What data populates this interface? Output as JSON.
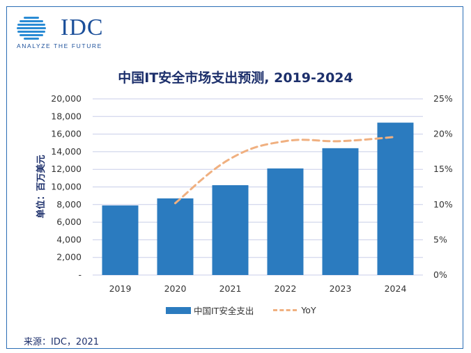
{
  "header": {
    "logo_name": "IDC",
    "tagline": "ANALYZE THE FUTURE"
  },
  "chart_data": {
    "type": "bar",
    "title": "中国IT安全市场支出预测, 2019-2024",
    "ylabel": "单位：百万美元",
    "categories": [
      "2019",
      "2020",
      "2021",
      "2022",
      "2023",
      "2024"
    ],
    "series": [
      {
        "name": "中国IT安全支出",
        "type": "bar",
        "axis": "left",
        "values": [
          7900,
          8700,
          10200,
          12100,
          14400,
          17300
        ]
      },
      {
        "name": "YoY",
        "type": "line",
        "axis": "right",
        "values": [
          null,
          10.2,
          16.5,
          19.0,
          19.0,
          19.6
        ]
      }
    ],
    "ylim": [
      0,
      20000
    ],
    "y2lim": [
      0,
      25
    ],
    "left_ticks": [
      "-",
      "2,000",
      "4,000",
      "6,000",
      "8,000",
      "10,000",
      "12,000",
      "14,000",
      "16,000",
      "18,000",
      "20,000"
    ],
    "right_ticks": [
      "0%",
      "5%",
      "10%",
      "15%",
      "20%",
      "25%"
    ],
    "grid": true,
    "legend_position": "bottom",
    "colors": {
      "bar": "#2b7bbf",
      "line": "#f0b080",
      "grid": "#c8cde8",
      "title": "#1c2f6b"
    }
  },
  "footer": {
    "source": "来源：IDC，2021"
  }
}
